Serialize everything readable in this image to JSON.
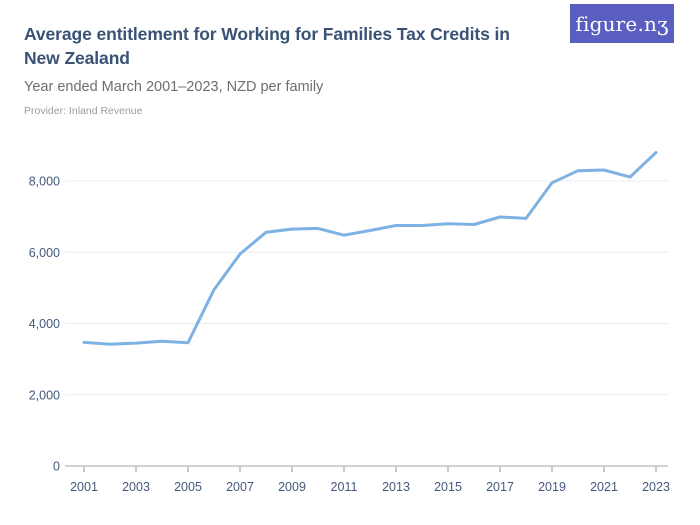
{
  "header": {
    "title": "Average entitlement for Working for Families Tax Credits in New Zealand",
    "subtitle": "Year ended March 2001–2023, NZD per family",
    "provider": "Provider: Inland Revenue",
    "logo_text": "figure.nʒ"
  },
  "colors": {
    "brand_purple": "#5a5ec1",
    "series_blue": "#7fb2e4",
    "title_navy": "#3a5276",
    "axis_label_blue": "#44597c",
    "gridline_gray": "#ececec",
    "subtitle_gray": "#6b6e73",
    "provider_gray": "#9a9da3"
  },
  "chart_data": {
    "type": "line",
    "title": "Average entitlement for Working for Families Tax Credits in New Zealand",
    "subtitle": "Year ended March 2001–2023, NZD per family",
    "xlabel": "",
    "ylabel": "NZD per family",
    "grid": true,
    "legend": false,
    "xlim": [
      2001,
      2023
    ],
    "ylim": [
      0,
      9200
    ],
    "x": [
      2001,
      2002,
      2003,
      2004,
      2005,
      2006,
      2007,
      2008,
      2009,
      2010,
      2011,
      2012,
      2013,
      2014,
      2015,
      2016,
      2017,
      2018,
      2019,
      2020,
      2021,
      2022,
      2023
    ],
    "values": [
      3470,
      3420,
      3450,
      3500,
      3460,
      4950,
      5950,
      6560,
      6650,
      6670,
      6480,
      6610,
      6750,
      6750,
      6800,
      6780,
      6990,
      6950,
      7950,
      8290,
      8310,
      8110,
      8800
    ],
    "x_tick_years": [
      2001,
      2003,
      2005,
      2007,
      2009,
      2011,
      2013,
      2015,
      2017,
      2019,
      2021,
      2023
    ],
    "y_ticks": [
      0,
      2000,
      4000,
      6000,
      8000
    ],
    "y_tick_labels": [
      "0",
      "2,000",
      "4,000",
      "6,000",
      "8,000"
    ]
  }
}
